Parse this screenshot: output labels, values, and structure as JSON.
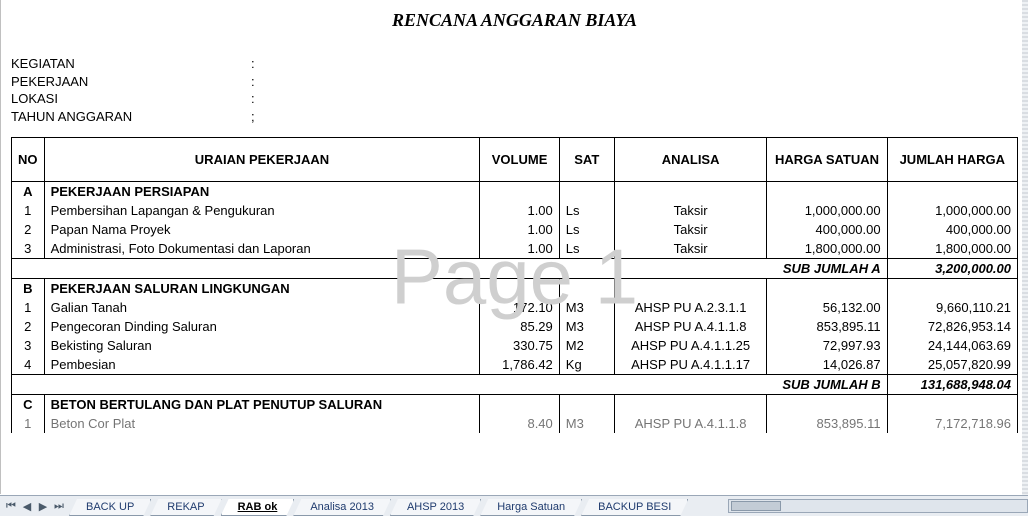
{
  "title": "RENCANA ANGGARAN BIAYA",
  "watermark": "Page 1",
  "meta": {
    "rows": [
      {
        "label": "KEGIATAN",
        "sep": ":"
      },
      {
        "label": "PEKERJAAN",
        "sep": ":"
      },
      {
        "label": "LOKASI",
        "sep": ":"
      },
      {
        "label": "TAHUN ANGGARAN",
        "sep": ";"
      }
    ]
  },
  "columns": {
    "no": "NO",
    "uraian": "URAIAN PEKERJAAN",
    "volume": "VOLUME",
    "sat": "SAT",
    "analisa": "ANALISA",
    "harga": "HARGA SATUAN",
    "jumlah": "JUMLAH HARGA"
  },
  "sections": [
    {
      "code": "A",
      "title": "PEKERJAAN PERSIAPAN",
      "items": [
        {
          "no": "1",
          "uraian": "Pembersihan Lapangan & Pengukuran",
          "vol": "1.00",
          "sat": "Ls",
          "analisa": "Taksir",
          "harga": "1,000,000.00",
          "jumlah": "1,000,000.00"
        },
        {
          "no": "2",
          "uraian": "Papan Nama Proyek",
          "vol": "1.00",
          "sat": "Ls",
          "analisa": "Taksir",
          "harga": "400,000.00",
          "jumlah": "400,000.00"
        },
        {
          "no": "3",
          "uraian": "Administrasi, Foto Dokumentasi dan Laporan",
          "vol": "1.00",
          "sat": "Ls",
          "analisa": "Taksir",
          "harga": "1,800,000.00",
          "jumlah": "1,800,000.00"
        }
      ],
      "subtotal_label": "SUB JUMLAH A",
      "subtotal": "3,200,000.00"
    },
    {
      "code": "B",
      "title": "PEKERJAAN SALURAN LINGKUNGAN",
      "items": [
        {
          "no": "1",
          "uraian": "Galian Tanah",
          "vol": "172.10",
          "sat": "M3",
          "analisa": "AHSP PU A.2.3.1.1",
          "harga": "56,132.00",
          "jumlah": "9,660,110.21"
        },
        {
          "no": "2",
          "uraian": "Pengecoran Dinding Saluran",
          "vol": "85.29",
          "sat": "M3",
          "analisa": "AHSP PU A.4.1.1.8",
          "harga": "853,895.11",
          "jumlah": "72,826,953.14"
        },
        {
          "no": "3",
          "uraian": "Bekisting Saluran",
          "vol": "330.75",
          "sat": "M2",
          "analisa": "AHSP PU A.4.1.1.25",
          "harga": "72,997.93",
          "jumlah": "24,144,063.69"
        },
        {
          "no": "4",
          "uraian": "Pembesian",
          "vol": "1,786.42",
          "sat": "Kg",
          "analisa": "AHSP PU A.4.1.1.17",
          "harga": "14,026.87",
          "jumlah": "25,057,820.99"
        }
      ],
      "subtotal_label": "SUB JUMLAH B",
      "subtotal": "131,688,948.04"
    },
    {
      "code": "C",
      "title": "BETON BERTULANG DAN PLAT PENUTUP SALURAN",
      "items": [
        {
          "no": "1",
          "uraian": "Beton Cor Plat",
          "vol": "8.40",
          "sat": "M3",
          "analisa": "AHSP PU A.4.1.1.8",
          "harga": "853,895.11",
          "jumlah": "7,172,718.96"
        }
      ]
    }
  ],
  "tabs": {
    "items": [
      {
        "label": "BACK UP",
        "active": false
      },
      {
        "label": "REKAP",
        "active": false
      },
      {
        "label": "RAB ok",
        "active": true
      },
      {
        "label": "Analisa 2013",
        "active": false
      },
      {
        "label": "AHSP 2013",
        "active": false
      },
      {
        "label": "Harga Satuan",
        "active": false
      },
      {
        "label": "BACKUP BESI",
        "active": false
      }
    ]
  },
  "colors": {
    "border": "#000000",
    "tabbar_bg": "#e9edf2",
    "tab_bg": "#f4f6f9",
    "tab_active_bg": "#ffffff",
    "tab_text": "#1f3b6e",
    "watermark": "#cfcfcf"
  }
}
